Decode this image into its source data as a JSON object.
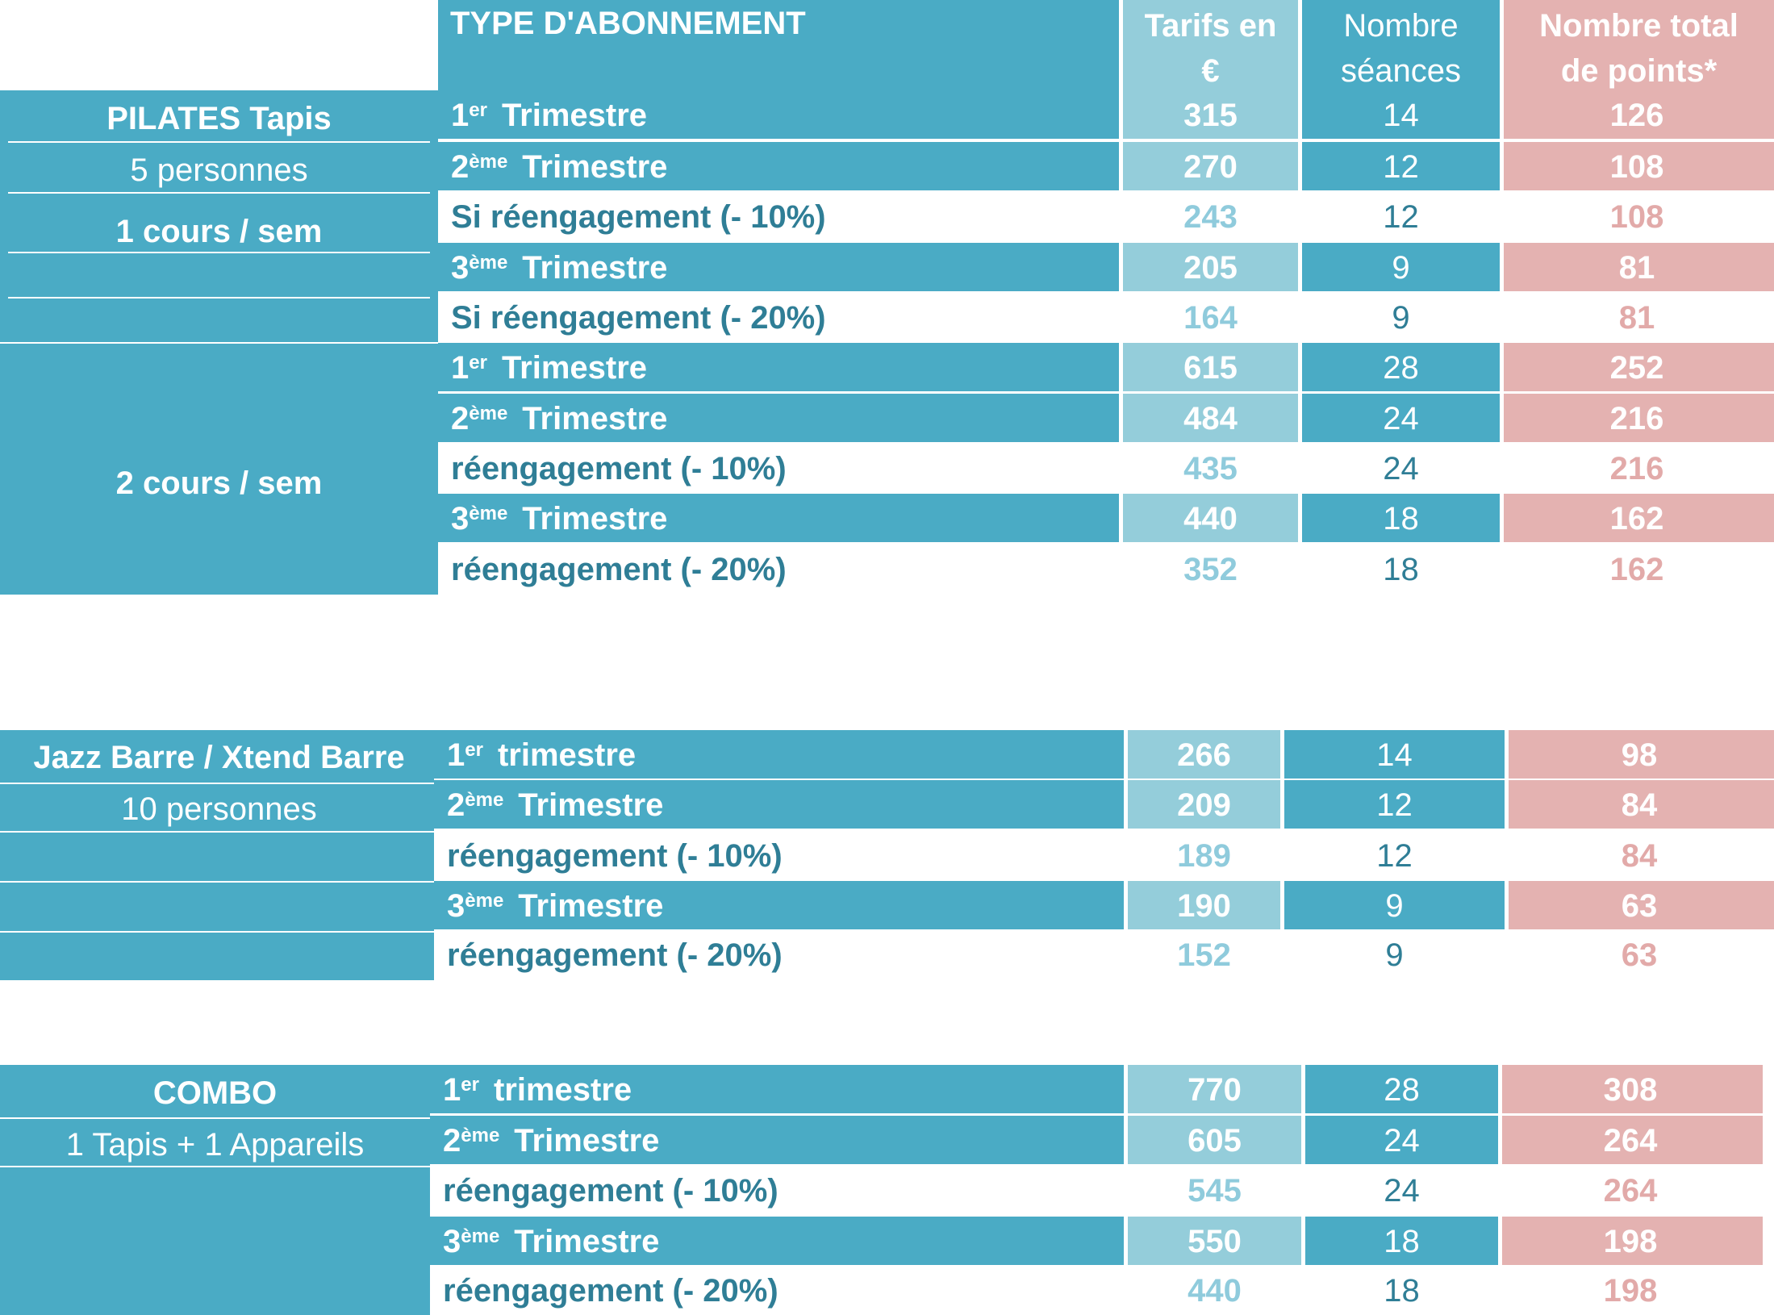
{
  "header": {
    "type": "TYPE D'ABONNEMENT",
    "tarifs": [
      "Tarifs en",
      "€"
    ],
    "seances": [
      "Nombre",
      "séances"
    ],
    "points": [
      "Nombre total",
      "de points*"
    ]
  },
  "colors": {
    "teal": "#4aabc5",
    "light_teal": "#94cdda",
    "pink": "#e4b2b1",
    "text_dark_teal": "#2f7e96",
    "text_light_teal": "#8fcbdc",
    "text_pink": "#e2aaa9"
  },
  "pilates": {
    "title": "PILATES Tapis",
    "capacity": "5 personnes",
    "group1": "1 cours / sem",
    "group2": "2 cours / sem",
    "rows": [
      {
        "num": "1",
        "sup": "er",
        "label": "Trimestre",
        "tarif": "315",
        "seances": "14",
        "points": "126"
      },
      {
        "num": "2",
        "sup": "ème",
        "label": "Trimestre",
        "tarif": "270",
        "seances": "12",
        "points": "108"
      },
      {
        "label": "Si réengagement (- 10%)",
        "tarif": "243",
        "seances": "12",
        "points": "108"
      },
      {
        "num": "3",
        "sup": "ème",
        "label": "Trimestre",
        "tarif": "205",
        "seances": "9",
        "points": "81"
      },
      {
        "label": "Si réengagement (- 20%)",
        "tarif": "164",
        "seances": "9",
        "points": "81"
      },
      {
        "num": "1",
        "sup": "er",
        "label": "Trimestre",
        "tarif": "615",
        "seances": "28",
        "points": "252"
      },
      {
        "num": "2",
        "sup": "ème",
        "label": "Trimestre",
        "tarif": "484",
        "seances": "24",
        "points": "216"
      },
      {
        "label": "réengagement (- 10%)",
        "tarif": "435",
        "seances": "24",
        "points": "216"
      },
      {
        "num": "3",
        "sup": "ème",
        "label": "Trimestre",
        "tarif": "440",
        "seances": "18",
        "points": "162"
      },
      {
        "label": "réengagement (- 20%)",
        "tarif": "352",
        "seances": "18",
        "points": "162"
      }
    ]
  },
  "jazz": {
    "title": "Jazz Barre / Xtend Barre",
    "capacity": "10 personnes",
    "rows": [
      {
        "num": "1",
        "sup": "er",
        "label": "trimestre",
        "tarif": "266",
        "seances": "14",
        "points": "98"
      },
      {
        "num": "2",
        "sup": "ème",
        "label": "Trimestre",
        "tarif": "209",
        "seances": "12",
        "points": "84"
      },
      {
        "label": "réengagement (- 10%)",
        "tarif": "189",
        "seances": "12",
        "points": "84"
      },
      {
        "num": "3",
        "sup": "ème",
        "label": "Trimestre",
        "tarif": "190",
        "seances": "9",
        "points": "63"
      },
      {
        "label": "réengagement (- 20%)",
        "tarif": "152",
        "seances": "9",
        "points": "63"
      }
    ]
  },
  "combo": {
    "title": "COMBO",
    "capacity": "1 Tapis  + 1 Appareils",
    "rows": [
      {
        "num": "1",
        "sup": "er",
        "label": "trimestre",
        "tarif": "770",
        "seances": "28",
        "points": "308"
      },
      {
        "num": "2",
        "sup": "ème",
        "label": "Trimestre",
        "tarif": "605",
        "seances": "24",
        "points": "264"
      },
      {
        "label": "réengagement (- 10%)",
        "tarif": "545",
        "seances": "24",
        "points": "264"
      },
      {
        "num": "3",
        "sup": "ème",
        "label": "Trimestre",
        "tarif": "550",
        "seances": "18",
        "points": "198"
      },
      {
        "label": "réengagement (- 20%)",
        "tarif": "440",
        "seances": "18",
        "points": "198"
      }
    ]
  }
}
